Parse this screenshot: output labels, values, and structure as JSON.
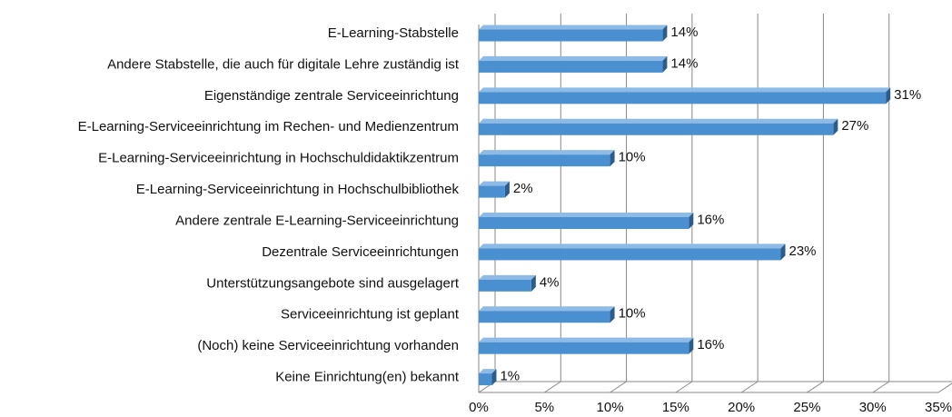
{
  "chart_data": {
    "type": "bar",
    "orientation": "horizontal",
    "color": "#4a8fcf",
    "categories": [
      "E-Learning-Stabstelle",
      "Andere Stabstelle, die auch für digitale Lehre zuständig ist",
      "Eigenständige zentrale Serviceeinrichtung",
      "E-Learning-Serviceeinrichtung im Rechen- und Medienzentrum",
      "E-Learning-Serviceeinrichtung in Hochschuldidaktikzentrum",
      "E-Learning-Serviceeinrichtung in Hochschulbibliothek",
      "Andere zentrale E-Learning-Serviceeinrichtung",
      "Dezentrale Serviceeinrichtungen",
      "Unterstützungsangebote sind ausgelagert",
      "Serviceeinrichtung ist geplant",
      "(Noch) keine Serviceeinrichtung vorhanden",
      "Keine Einrichtung(en) bekannt"
    ],
    "values": [
      14,
      14,
      31,
      27,
      10,
      2,
      16,
      23,
      4,
      10,
      16,
      1
    ],
    "value_labels": [
      "14%",
      "14%",
      "31%",
      "27%",
      "10%",
      "2%",
      "16%",
      "23%",
      "4%",
      "10%",
      "16%",
      "1%"
    ],
    "xlim": [
      0,
      35
    ],
    "xticks": [
      {
        "value": 0,
        "label": "0%"
      },
      {
        "value": 5,
        "label": "5%"
      },
      {
        "value": 10,
        "label": "10%"
      },
      {
        "value": 15,
        "label": "15%"
      },
      {
        "value": 20,
        "label": "20%"
      },
      {
        "value": 25,
        "label": "25%"
      },
      {
        "value": 30,
        "label": "30%"
      },
      {
        "value": 35,
        "label": "35%"
      }
    ],
    "grid": true
  }
}
